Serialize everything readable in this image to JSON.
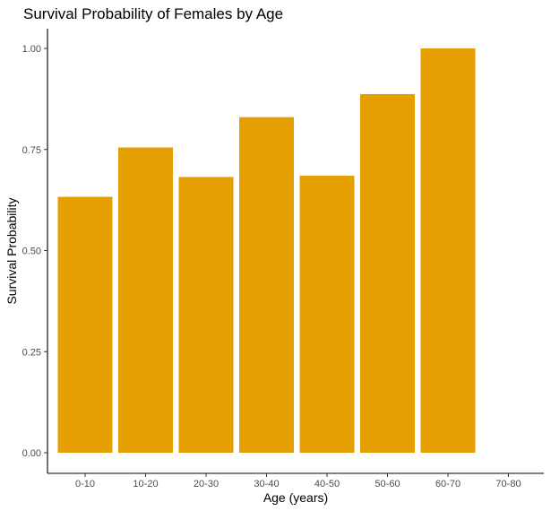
{
  "chart_data": {
    "type": "bar",
    "title": "Survival Probability of Females by Age",
    "xlabel": "Age (years)",
    "ylabel": "Survival Probability",
    "categories": [
      "0-10",
      "10-20",
      "20-30",
      "30-40",
      "40-50",
      "50-60",
      "60-70",
      "70-80"
    ],
    "values": [
      0.633,
      0.755,
      0.682,
      0.83,
      0.685,
      0.887,
      1.0,
      null
    ],
    "ylim": [
      0,
      1.05
    ],
    "yticks": [
      0.0,
      0.25,
      0.5,
      0.75,
      1.0
    ],
    "ytick_labels": [
      "0.00",
      "0.25",
      "0.50",
      "0.75",
      "1.00"
    ],
    "grid": false,
    "bar_color": "#E69F00"
  }
}
